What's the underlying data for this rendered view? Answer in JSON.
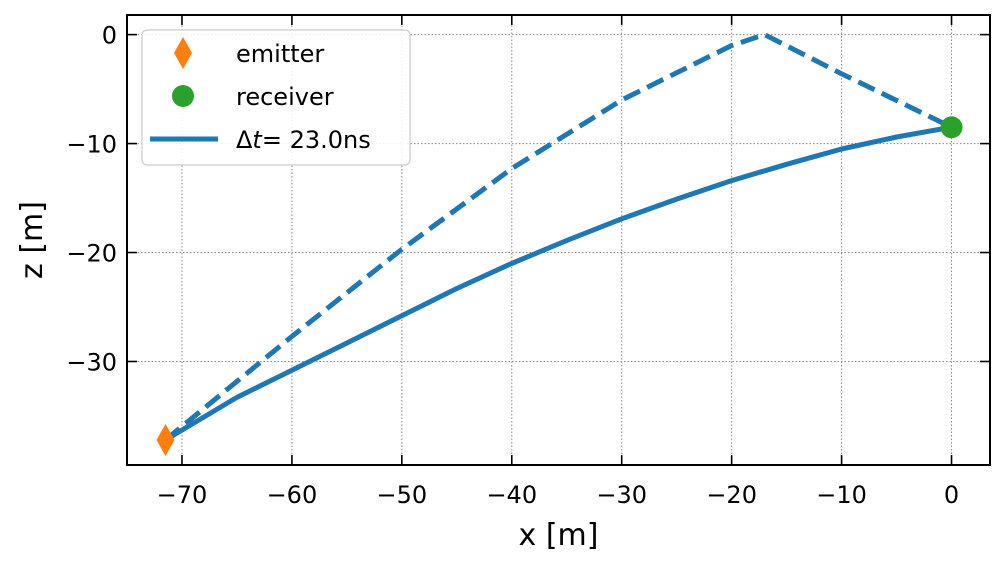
{
  "chart_data": {
    "type": "line",
    "xlabel": "x [m]",
    "ylabel": "z [m]",
    "xlim": [
      -75,
      3.5
    ],
    "ylim": [
      -39.5,
      1.8
    ],
    "xticks": [
      -70,
      -60,
      -50,
      -40,
      -30,
      -20,
      -10,
      0
    ],
    "yticks": [
      0,
      -10,
      -20,
      -30
    ],
    "xtick_labels": [
      "−70",
      "−60",
      "−50",
      "−40",
      "−30",
      "−20",
      "−10",
      "0"
    ],
    "ytick_labels": [
      "0",
      "−10",
      "−20",
      "−30"
    ],
    "grid": true,
    "legend_position": "top-left",
    "series": [
      {
        "name": "Δt= 23.0ns",
        "name_parts": [
          "Δ",
          "t",
          "= 23.0ns"
        ],
        "style": "solid",
        "color": "#1f77b4",
        "x": [
          -71.5,
          -65,
          -60,
          -55,
          -50,
          -45,
          -40,
          -35,
          -30,
          -25,
          -20,
          -15,
          -10,
          -5,
          0
        ],
        "y": [
          -37.2,
          -33.3,
          -30.8,
          -28.3,
          -25.8,
          -23.3,
          -21.0,
          -18.9,
          -16.9,
          -15.1,
          -13.4,
          -11.9,
          -10.5,
          -9.4,
          -8.5
        ]
      },
      {
        "name": "",
        "style": "dashed",
        "color": "#1f77b4",
        "x": [
          -71.5,
          -60,
          -50,
          -40,
          -30,
          -20,
          -17,
          -10,
          0
        ],
        "y": [
          -37.2,
          -27.7,
          -19.7,
          -12.3,
          -6.0,
          -1.0,
          0.0,
          -3.6,
          -8.5
        ]
      }
    ],
    "markers": [
      {
        "name": "emitter",
        "shape": "diamond",
        "color": "#ff7f0e",
        "x": -71.5,
        "y": -37.2
      },
      {
        "name": "receiver",
        "shape": "circle",
        "color": "#2ca02c",
        "x": 0,
        "y": -8.5
      }
    ]
  }
}
